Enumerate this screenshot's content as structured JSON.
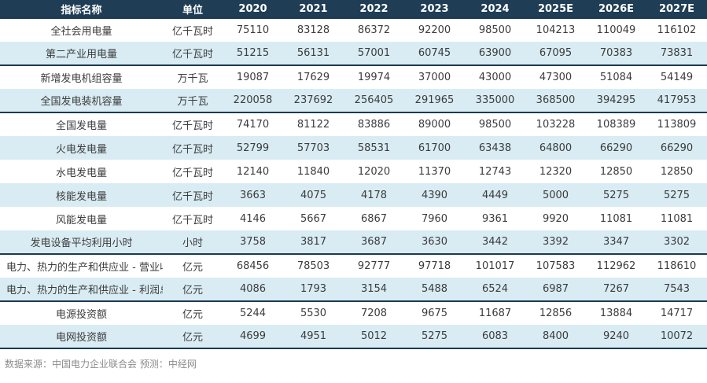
{
  "chart_data": {
    "type": "table",
    "title": "",
    "columns": [
      "指标名称",
      "单位",
      "2020",
      "2021",
      "2022",
      "2023",
      "2024",
      "2025E",
      "2026E",
      "2027E"
    ],
    "x": [
      "2020",
      "2021",
      "2022",
      "2023",
      "2024",
      "2025E",
      "2026E",
      "2027E"
    ],
    "rows": [
      {
        "name": "全社会用电量",
        "unit": "亿千瓦时",
        "values": [
          75110,
          83128,
          86372,
          92200,
          98500,
          104213,
          110049,
          116102
        ],
        "group_end": false,
        "left_align": false
      },
      {
        "name": "第二产业用电量",
        "unit": "亿千瓦时",
        "values": [
          51215,
          56131,
          57001,
          60745,
          63900,
          67095,
          70383,
          73831
        ],
        "group_end": true,
        "left_align": false
      },
      {
        "name": "新增发电机组容量",
        "unit": "万千瓦",
        "values": [
          19087,
          17629,
          19974,
          37000,
          43000,
          47300,
          51084,
          54149
        ],
        "group_end": false,
        "left_align": false
      },
      {
        "name": "全国发电装机容量",
        "unit": "万千瓦",
        "values": [
          220058,
          237692,
          256405,
          291965,
          335000,
          368500,
          394295,
          417953
        ],
        "group_end": true,
        "left_align": false
      },
      {
        "name": "全国发电量",
        "unit": "亿千瓦时",
        "values": [
          74170,
          81122,
          83886,
          89000,
          98500,
          103228,
          108389,
          113809
        ],
        "group_end": false,
        "left_align": false
      },
      {
        "name": "火电发电量",
        "unit": "亿千瓦时",
        "values": [
          52799,
          57703,
          58531,
          61700,
          63438,
          64800,
          66290,
          66290
        ],
        "group_end": false,
        "left_align": false
      },
      {
        "name": "水电发电量",
        "unit": "亿千瓦时",
        "values": [
          12140,
          11840,
          12020,
          11370,
          12743,
          12320,
          12850,
          12850
        ],
        "group_end": false,
        "left_align": false
      },
      {
        "name": "核能发电量",
        "unit": "亿千瓦时",
        "values": [
          3663,
          4075,
          4178,
          4390,
          4449,
          5000,
          5275,
          5275
        ],
        "group_end": false,
        "left_align": false
      },
      {
        "name": "风能发电量",
        "unit": "亿千瓦时",
        "values": [
          4146,
          5667,
          6867,
          7960,
          9361,
          9920,
          11081,
          11081
        ],
        "group_end": false,
        "left_align": false
      },
      {
        "name": "发电设备平均利用小时",
        "unit": "小时",
        "values": [
          3758,
          3817,
          3687,
          3630,
          3442,
          3392,
          3347,
          3302
        ],
        "group_end": true,
        "left_align": false
      },
      {
        "name": "电力、热力的生产和供应业 - 营业收入",
        "unit": "亿元",
        "values": [
          68456,
          78503,
          92777,
          97718,
          101017,
          107583,
          112962,
          118610
        ],
        "group_end": false,
        "left_align": true
      },
      {
        "name": "电力、热力的生产和供应业 - 利润总额",
        "unit": "亿元",
        "values": [
          4086,
          1793,
          3154,
          5488,
          6524,
          6987,
          7267,
          7543
        ],
        "group_end": true,
        "left_align": true
      },
      {
        "name": "电源投资额",
        "unit": "亿元",
        "values": [
          5244,
          5530,
          7208,
          9675,
          11687,
          12856,
          13884,
          14717
        ],
        "group_end": false,
        "left_align": false
      },
      {
        "name": "电网投资额",
        "unit": "亿元",
        "values": [
          4699,
          4951,
          5012,
          5275,
          6083,
          8400,
          9240,
          10072
        ],
        "group_end": true,
        "left_align": false
      }
    ]
  },
  "footer": {
    "source_note": "数据来源：中国电力企业联合会 预测：中经网"
  },
  "colors": {
    "header_bg": "#1F3E55",
    "header_text": "#FFFFFF",
    "row_bg": "#FFFFFF",
    "row_alt_bg": "#D9ECF3",
    "separator": "#1B3A52",
    "body_text": "#3C3C3C",
    "footer_text": "#8C8C8C"
  }
}
